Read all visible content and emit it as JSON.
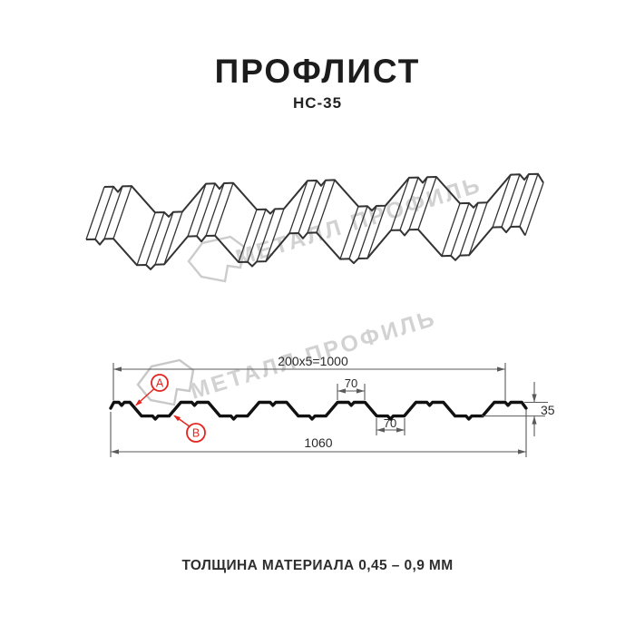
{
  "header": {
    "title": "ПРОФЛИСТ",
    "subtitle": "НС-35"
  },
  "watermark": {
    "text": "МЕТАЛЛ ПРОФИЛЬ"
  },
  "diagram": {
    "labels": {
      "point_a": "A",
      "point_b": "B"
    },
    "dimensions": {
      "top_span": "200x5=1000",
      "top_flange_width": "70",
      "bottom_flange_width": "70",
      "profile_height": "35",
      "overall_width": "1060"
    }
  },
  "footer": {
    "text": "ТОЛЩИНА МАТЕРИАЛА 0,45 – 0,9 ММ"
  },
  "colors": {
    "accent_red": "#e3251e",
    "profile_line": "#111111",
    "sketch_line": "#333333",
    "dim_line": "#5a5a5a",
    "watermark_gray": "#d2d2d2"
  }
}
